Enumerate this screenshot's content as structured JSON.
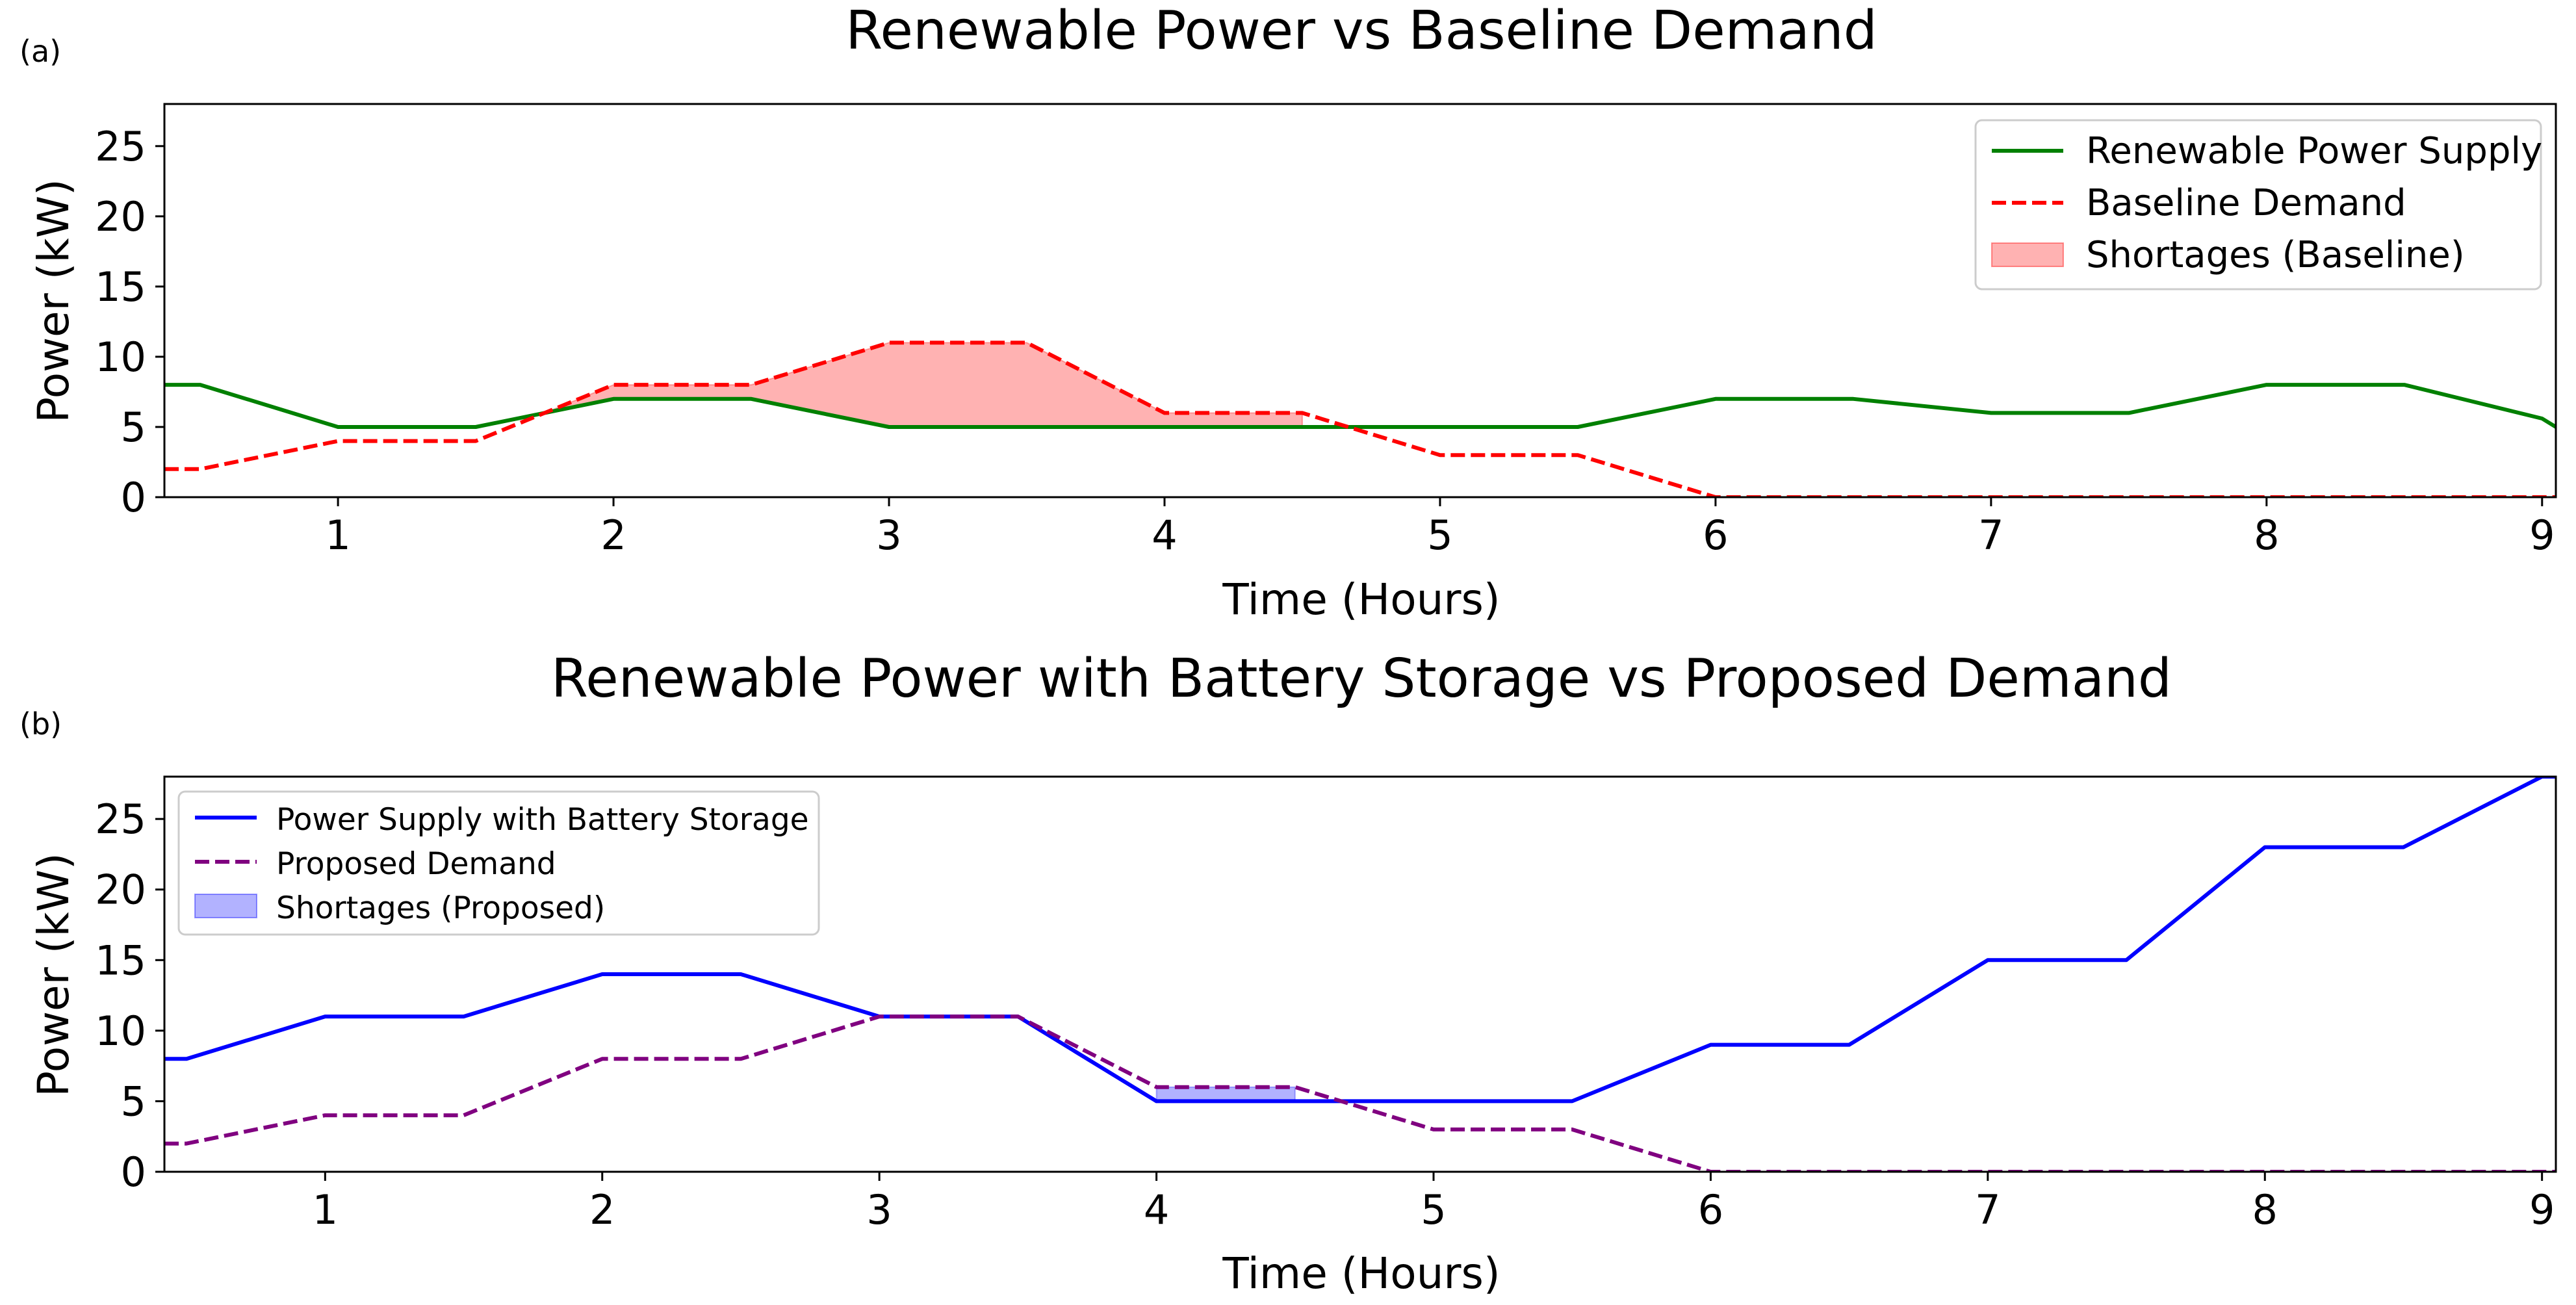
{
  "chart_data": [
    {
      "panel_label": "(a)",
      "type": "line",
      "title": "Renewable Power vs Baseline Demand",
      "xlabel": "Time (Hours)",
      "ylabel": "Power (kW)",
      "xlim": [
        0.37,
        9.05
      ],
      "ylim": [
        0,
        28
      ],
      "xticks": [
        "1",
        "2",
        "3",
        "4",
        "5",
        "6",
        "7",
        "8",
        "9"
      ],
      "yticks": [
        "0",
        "5",
        "10",
        "15",
        "20",
        "25"
      ],
      "legend_position": "top-right",
      "grid": false,
      "x": [
        0.37,
        0.5,
        1.0,
        1.5,
        2.0,
        2.5,
        3.0,
        3.5,
        4.0,
        4.5,
        5.0,
        5.5,
        6.0,
        6.5,
        7.0,
        7.5,
        8.0,
        8.5,
        9.0,
        9.05
      ],
      "series": [
        {
          "name": "Renewable Power Supply",
          "role": "supply",
          "style": "solid",
          "color": "#008000",
          "values": [
            8,
            8,
            5,
            5,
            7,
            7,
            5,
            5,
            5,
            5,
            5,
            5,
            7,
            7,
            6,
            6,
            8,
            8,
            5.6,
            5
          ]
        },
        {
          "name": "Baseline Demand",
          "role": "demand",
          "style": "dashed",
          "color": "#ff0000",
          "values": [
            2,
            2,
            4,
            4,
            8,
            8,
            11,
            11,
            6,
            6,
            3,
            3,
            0,
            0,
            0,
            0,
            0,
            0,
            0,
            0
          ]
        }
      ],
      "shortage": {
        "name": "Shortages (Baseline)",
        "color": "#ff0000",
        "x_range": [
          1.75,
          4.5
        ]
      }
    },
    {
      "panel_label": "(b)",
      "type": "line",
      "title": "Renewable Power with Battery Storage vs Proposed Demand",
      "xlabel": "Time (Hours)",
      "ylabel": "Power (kW)",
      "xlim": [
        0.42,
        9.05
      ],
      "ylim": [
        0,
        28
      ],
      "xticks": [
        "1",
        "2",
        "3",
        "4",
        "5",
        "6",
        "7",
        "8",
        "9"
      ],
      "yticks": [
        "0",
        "5",
        "10",
        "15",
        "20",
        "25"
      ],
      "legend_position": "top-left",
      "grid": false,
      "x": [
        0.42,
        0.5,
        1.0,
        1.5,
        2.0,
        2.5,
        3.0,
        3.5,
        4.0,
        4.5,
        5.0,
        5.5,
        6.0,
        6.5,
        7.0,
        7.5,
        8.0,
        8.5,
        9.0,
        9.05
      ],
      "series": [
        {
          "name": "Power Supply with Battery Storage",
          "role": "supply",
          "style": "solid",
          "color": "#0000ff",
          "values": [
            8,
            8,
            11,
            11,
            14,
            14,
            11,
            11,
            5,
            5,
            5,
            5,
            9,
            9,
            15,
            15,
            23,
            23,
            28,
            28
          ]
        },
        {
          "name": "Proposed Demand",
          "role": "demand",
          "style": "dashed",
          "color": "#800080",
          "values": [
            2,
            2,
            4,
            4,
            8,
            8,
            11,
            11,
            6,
            6,
            3,
            3,
            0,
            0,
            0,
            0,
            0,
            0,
            0,
            0
          ]
        }
      ],
      "shortage": {
        "name": "Shortages (Proposed)",
        "color": "#0000ff",
        "x_range": [
          4.0,
          4.5
        ]
      }
    }
  ]
}
